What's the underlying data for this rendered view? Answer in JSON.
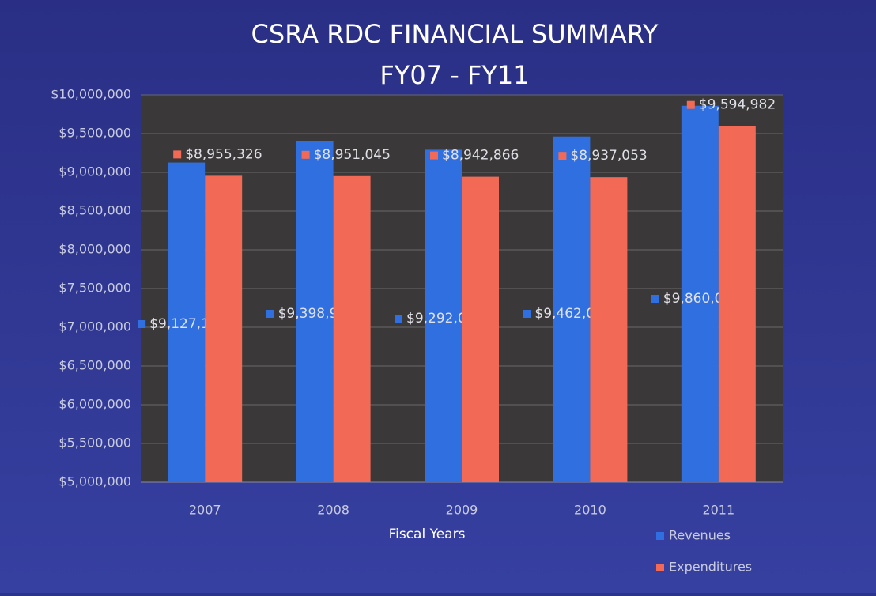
{
  "chart_data": {
    "type": "bar",
    "title": "CSRA RDC FINANCIAL SUMMARY",
    "subtitle": "FY07 - FY11",
    "x_label": "Fiscal Years",
    "categories": [
      "2007",
      "2008",
      "2009",
      "2010",
      "2011"
    ],
    "series": [
      {
        "name": "Revenues",
        "color": "#2f6fe0",
        "values": [
          9127162,
          9398910,
          9292061,
          9462046,
          9860029
        ],
        "value_labels": [
          "$9,127,162",
          "$9,398,910",
          "$9,292,061",
          "$9,462,046",
          "$9,860,029"
        ]
      },
      {
        "name": "Expenditures",
        "color": "#f26a55",
        "values": [
          8955326,
          8951045,
          8942866,
          8937053,
          9594982
        ],
        "value_labels": [
          "$8,955,326",
          "$8,951,045",
          "$8,942,866",
          "$8,937,053",
          "$9,594,982"
        ]
      }
    ],
    "ylim": [
      5000000,
      10000000
    ],
    "yticks": [
      {
        "value": 5000000,
        "label": "$5,000,000"
      },
      {
        "value": 5500000,
        "label": "$5,500,000"
      },
      {
        "value": 6000000,
        "label": "$6,000,000"
      },
      {
        "value": 6500000,
        "label": "$6,500,000"
      },
      {
        "value": 7000000,
        "label": "$7,000,000"
      },
      {
        "value": 7500000,
        "label": "$7,500,000"
      },
      {
        "value": 8000000,
        "label": "$8,000,000"
      },
      {
        "value": 8500000,
        "label": "$8,500,000"
      },
      {
        "value": 9000000,
        "label": "$9,000,000"
      },
      {
        "value": 9500000,
        "label": "$9,500,000"
      },
      {
        "value": 10000000,
        "label": "$10,000,000"
      }
    ],
    "grid": true,
    "legend": "bottom-right"
  }
}
